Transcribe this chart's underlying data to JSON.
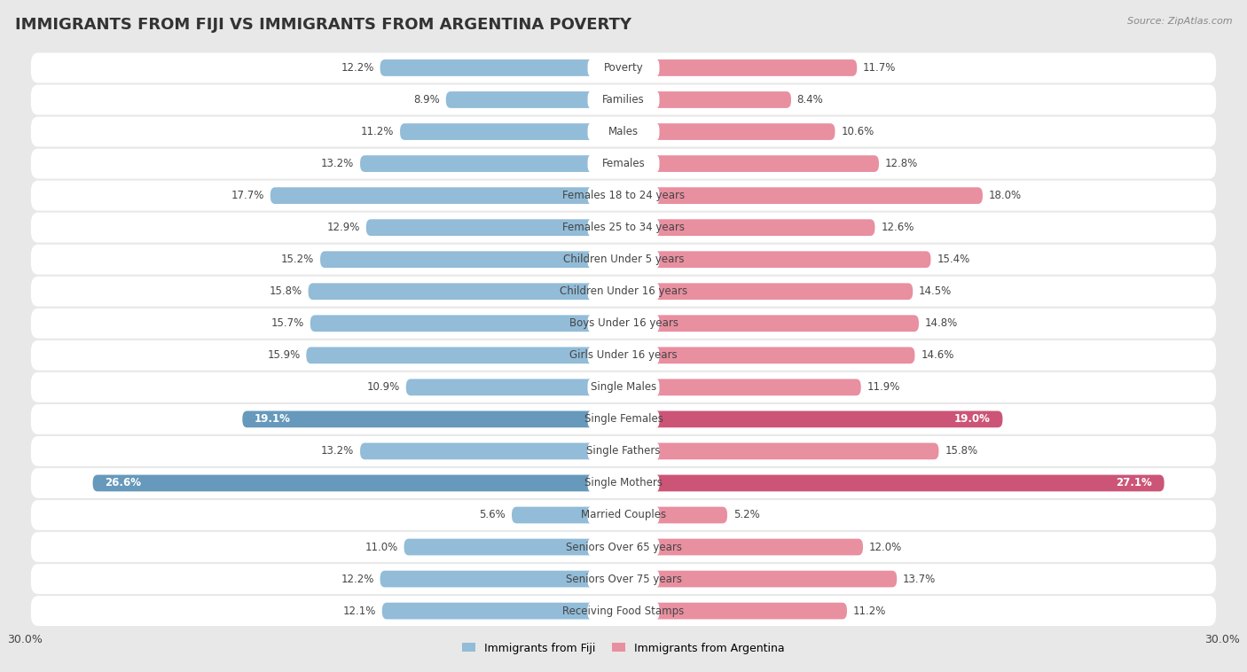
{
  "title": "IMMIGRANTS FROM FIJI VS IMMIGRANTS FROM ARGENTINA POVERTY",
  "source": "Source: ZipAtlas.com",
  "categories": [
    "Poverty",
    "Families",
    "Males",
    "Females",
    "Females 18 to 24 years",
    "Females 25 to 34 years",
    "Children Under 5 years",
    "Children Under 16 years",
    "Boys Under 16 years",
    "Girls Under 16 years",
    "Single Males",
    "Single Females",
    "Single Fathers",
    "Single Mothers",
    "Married Couples",
    "Seniors Over 65 years",
    "Seniors Over 75 years",
    "Receiving Food Stamps"
  ],
  "fiji_values": [
    12.2,
    8.9,
    11.2,
    13.2,
    17.7,
    12.9,
    15.2,
    15.8,
    15.7,
    15.9,
    10.9,
    19.1,
    13.2,
    26.6,
    5.6,
    11.0,
    12.2,
    12.1
  ],
  "argentina_values": [
    11.7,
    8.4,
    10.6,
    12.8,
    18.0,
    12.6,
    15.4,
    14.5,
    14.8,
    14.6,
    11.9,
    19.0,
    15.8,
    27.1,
    5.2,
    12.0,
    13.7,
    11.2
  ],
  "fiji_color": "#92bcd8",
  "argentina_color": "#e88fa0",
  "fiji_label": "Immigrants from Fiji",
  "argentina_label": "Immigrants from Argentina",
  "fiji_highlight_indices": [
    11,
    13
  ],
  "argentina_highlight_indices": [
    11,
    13
  ],
  "fiji_highlight_color": "#6699bb",
  "argentina_highlight_color": "#cc5577",
  "xlim": 30.0,
  "background_color": "#e8e8e8",
  "row_light_color": "#f5f5f5",
  "row_dark_color": "#e0e0e0",
  "title_fontsize": 13,
  "label_fontsize": 8.5,
  "value_fontsize": 8.5,
  "bar_height": 0.52
}
